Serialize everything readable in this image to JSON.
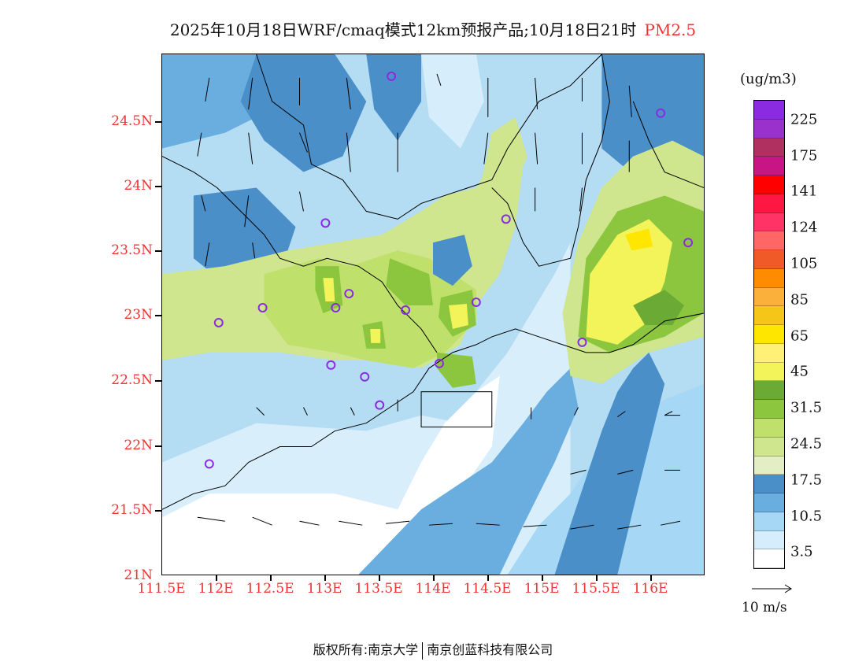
{
  "title": {
    "main": "2025年10月18日WRF/cmaq模式12km预报产品;10月18日21时",
    "pollutant": "PM2.5"
  },
  "axes": {
    "lat_labels": [
      "24.5N",
      "24N",
      "23.5N",
      "23N",
      "22.5N",
      "22N",
      "21.5N",
      "21N"
    ],
    "lon_labels": [
      "111.5E",
      "112E",
      "112.5E",
      "113E",
      "113.5E",
      "114E",
      "114.5E",
      "115E",
      "115.5E",
      "116E"
    ]
  },
  "colorbar": {
    "unit": "(ug/m3)",
    "labels": [
      "225",
      "175",
      "141",
      "124",
      "105",
      "85",
      "65",
      "45",
      "31.5",
      "24.5",
      "17.5",
      "10.5",
      "3.5"
    ],
    "colors": [
      "#8a2be2",
      "#9932cc",
      "#b03060",
      "#c71585",
      "#ff0000",
      "#ff1744",
      "#ff3366",
      "#ff6666",
      "#f05a28",
      "#ff8c00",
      "#fbb03b",
      "#f5c518",
      "#ffe600",
      "#fff176",
      "#f3f35a",
      "#6aaa35",
      "#8cc63f",
      "#bfe06b",
      "#cfe58e",
      "#e3eec4",
      "#4a8fc8",
      "#6aaee0",
      "#a6d8f5",
      "#d6eefb",
      "#ffffff"
    ]
  },
  "vector_legend": {
    "label": "10 m/s"
  },
  "footer": {
    "left": "版权所有:南京大学",
    "right": "南京创蓝科技有限公司"
  }
}
